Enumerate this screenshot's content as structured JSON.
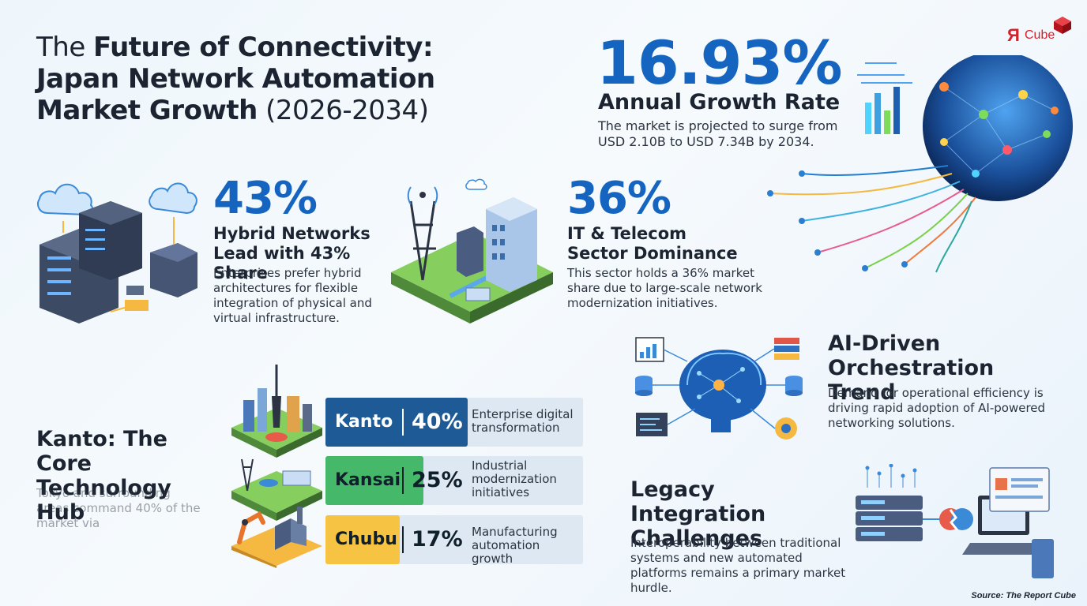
{
  "header": {
    "title_pre": "The ",
    "title_bold": "Future of Connectivity: Japan Network Automation Market Growth",
    "title_years": " (2026-2034)"
  },
  "logo": {
    "r": "Я",
    "text": "Cube"
  },
  "growth": {
    "value": "16.93%",
    "label": "Annual Growth Rate",
    "desc": "The market is projected to surge from USD 2.10B to USD 7.34B by 2034."
  },
  "hybrid": {
    "value": "43%",
    "title": "Hybrid Networks Lead with 43% Share",
    "desc": "Enterprises prefer hybrid architectures for flexible integration of physical and virtual infrastructure."
  },
  "telecom": {
    "value": "36%",
    "title": "IT & Telecom Sector Dominance",
    "desc": "This sector holds a 36% market share due to large-scale network modernization initiatives."
  },
  "ai": {
    "title": "AI-Driven Orchestration Trend",
    "desc": "Demand for operational efficiency is driving rapid adoption of AI-powered networking solutions."
  },
  "kanto_hub": {
    "title": "Kanto: The Core Technology Hub",
    "desc": "Tokyo and surrounding areas command 40% of the market via"
  },
  "regions": [
    {
      "name": "Kanto",
      "share": "40%",
      "fraction": 0.4,
      "note": "Enterprise digital transformation",
      "color": "#1e5a96",
      "text_color": "#ffffff"
    },
    {
      "name": "Kansai",
      "share": "25%",
      "fraction": 0.25,
      "note": "Industrial modernization initiatives",
      "color": "#45b86a",
      "text_color": "#10202a"
    },
    {
      "name": "Chubu",
      "share": "17%",
      "fraction": 0.17,
      "note": "Manufacturing automation growth",
      "color": "#f6c343",
      "text_color": "#10202a"
    }
  ],
  "legacy": {
    "title": "Legacy Integration Challenges",
    "desc": "Interoperability between traditional systems and new automated platforms remains a primary market hurdle."
  },
  "source": "Source: The Report Cube",
  "colors": {
    "accent": "#1565c0",
    "logo_red": "#d6202a"
  },
  "icons": [
    "cloud-server-icon",
    "cell-tower-city-icon",
    "network-globe-icon",
    "ai-brain-icon",
    "legacy-server-laptop-icon",
    "tokyo-skyline-icon",
    "kansai-industry-icon",
    "chubu-factory-icon"
  ]
}
